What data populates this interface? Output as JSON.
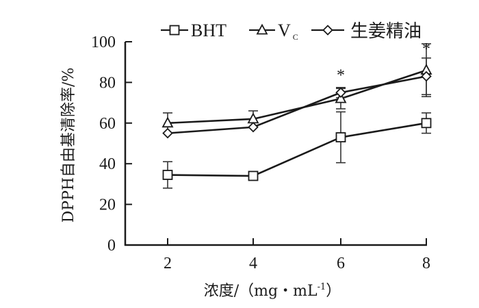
{
  "chart_data": {
    "type": "line",
    "title": "",
    "xlabel": "浓度/（mg・mL⁻¹）",
    "xlabel_parts": {
      "main": "浓度/（mg・mL",
      "sup": "-1",
      "close": "）"
    },
    "ylabel": "DPPH自由基清除率/%",
    "x": [
      2,
      4,
      6,
      8
    ],
    "xticks": [
      "2",
      "4",
      "6",
      "8"
    ],
    "yticks": [
      "0",
      "20",
      "40",
      "60",
      "80",
      "100"
    ],
    "ylim": [
      0,
      100
    ],
    "grid": false,
    "legend_position": "top",
    "series": [
      {
        "name": "BHT",
        "marker": "square",
        "values": [
          34.5,
          34,
          53,
          60
        ],
        "error": [
          6.5,
          0,
          12.5,
          5
        ]
      },
      {
        "name": "Vc",
        "name_main": "V",
        "name_sub": "C",
        "marker": "triangle",
        "values": [
          60,
          62,
          72,
          86
        ],
        "error": [
          5,
          4,
          5,
          13
        ]
      },
      {
        "name": "生姜精油",
        "marker": "diamond",
        "values": [
          55,
          58,
          75,
          83
        ],
        "error": [
          0,
          0,
          2.5,
          9
        ]
      }
    ],
    "annotations": [
      {
        "x": 2,
        "text": "*",
        "y_pos": 122
      },
      {
        "x": 4,
        "text": "*",
        "y_pos": 124
      },
      {
        "x": 6,
        "text": "*",
        "y_pos": 84
      },
      {
        "x": 8,
        "text": "*",
        "y_pos": 97
      }
    ]
  }
}
